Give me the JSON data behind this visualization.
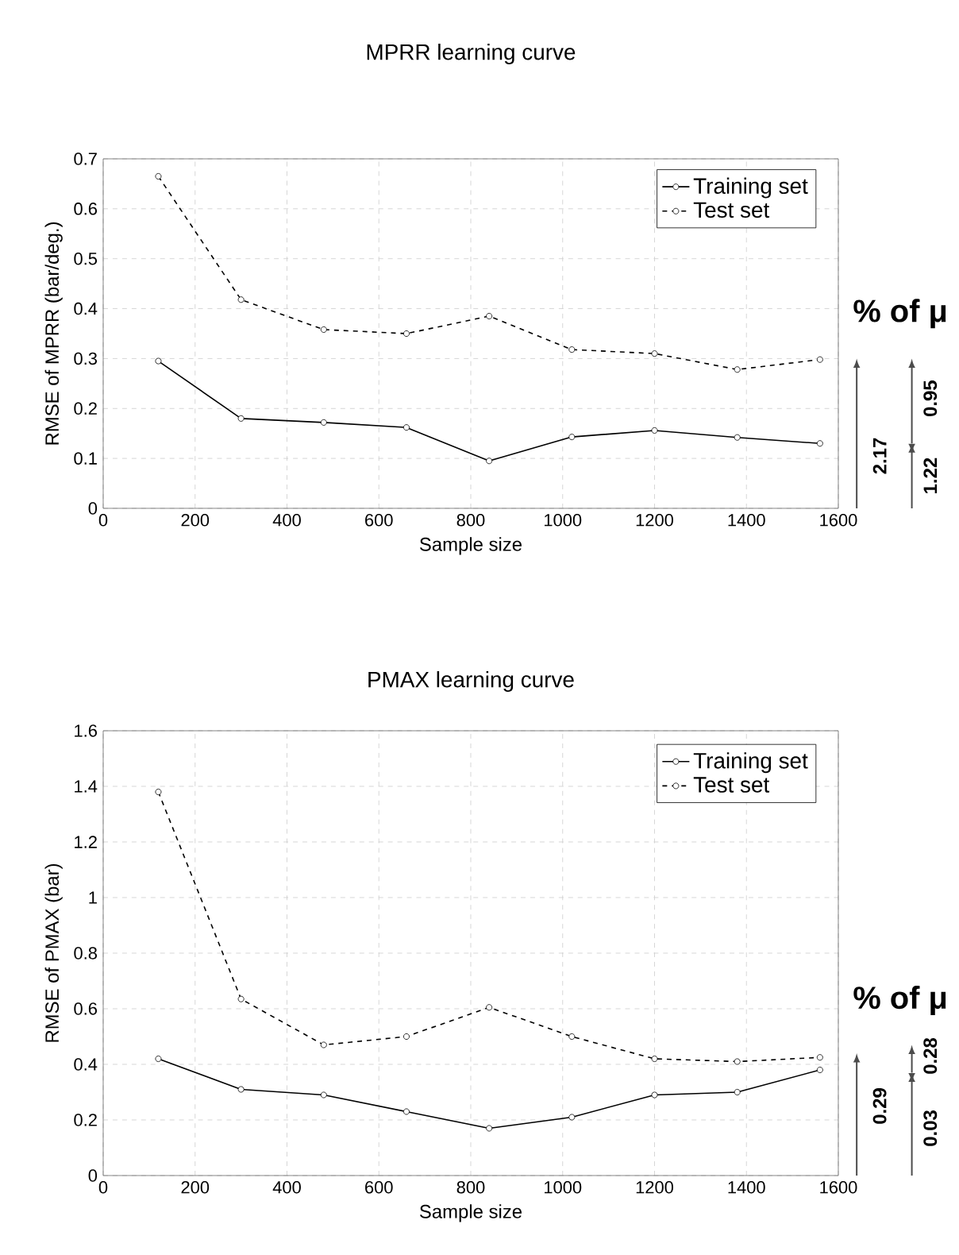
{
  "chart_data": [
    {
      "type": "line",
      "title": "MPRR learning curve",
      "xlabel": "Sample size",
      "ylabel": "RMSE of MPRR (bar/deg.)",
      "x": [
        120,
        300,
        480,
        660,
        840,
        1020,
        1200,
        1380,
        1560
      ],
      "series": [
        {
          "name": "Training set",
          "color": "#000000",
          "line_style": "solid",
          "values": [
            0.295,
            0.18,
            0.172,
            0.162,
            0.095,
            0.143,
            0.156,
            0.142,
            0.13
          ]
        },
        {
          "name": "Test set",
          "color": "#000000",
          "line_style": "dashed",
          "values": [
            0.665,
            0.418,
            0.358,
            0.35,
            0.385,
            0.318,
            0.31,
            0.278,
            0.298
          ]
        }
      ],
      "xlim": [
        0,
        1600
      ],
      "xticks": [
        0,
        200,
        400,
        600,
        800,
        1000,
        1200,
        1400,
        1600
      ],
      "ylim": [
        0,
        0.7
      ],
      "yticks": [
        0,
        0.1,
        0.2,
        0.3,
        0.4,
        0.5,
        0.6,
        0.7
      ],
      "grid": true,
      "legend": "top right",
      "marker": "circle",
      "annotations": [
        "% of μ",
        "2.17",
        "0.95",
        "1.22"
      ]
    },
    {
      "type": "line",
      "title": "PMAX learning curve",
      "xlabel": "Sample size",
      "ylabel": "RMSE of PMAX (bar)",
      "x": [
        120,
        300,
        480,
        660,
        840,
        1020,
        1200,
        1380,
        1560
      ],
      "series": [
        {
          "name": "Training set",
          "color": "#000000",
          "line_style": "solid",
          "values": [
            0.42,
            0.31,
            0.29,
            0.23,
            0.17,
            0.21,
            0.29,
            0.3,
            0.38
          ]
        },
        {
          "name": "Test set",
          "color": "#000000",
          "line_style": "dashed",
          "values": [
            1.38,
            0.635,
            0.47,
            0.5,
            0.605,
            0.5,
            0.42,
            0.41,
            0.425
          ]
        }
      ],
      "xlim": [
        0,
        1600
      ],
      "xticks": [
        0,
        200,
        400,
        600,
        800,
        1000,
        1200,
        1400,
        1600
      ],
      "ylim": [
        0,
        1.6
      ],
      "yticks": [
        0,
        0.2,
        0.4,
        0.6,
        0.8,
        1,
        1.2,
        1.4,
        1.6
      ],
      "grid": true,
      "legend": "top right",
      "marker": "circle",
      "annotations": [
        "% of μ",
        "0.29",
        "0.28",
        "0.03"
      ]
    }
  ]
}
